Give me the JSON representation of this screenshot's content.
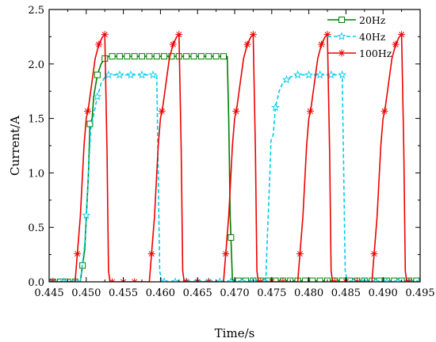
{
  "chart_data": {
    "type": "line",
    "xlabel": "Time/s",
    "ylabel": "Current/A",
    "xlim": [
      0.445,
      0.495
    ],
    "ylim": [
      0.0,
      2.5
    ],
    "xticks": [
      "0.445",
      "0.450",
      "0.455",
      "0.460",
      "0.465",
      "0.470",
      "0.475",
      "0.480",
      "0.485",
      "0.490",
      "0.495"
    ],
    "yticks": [
      "0.0",
      "0.5",
      "1.0",
      "1.5",
      "2.0",
      "2.5"
    ],
    "grid": false,
    "legend_position": "top-right",
    "series": [
      {
        "name": "20Hz",
        "color": "#008000",
        "line_style": "solid",
        "marker": "square",
        "points": [
          [
            0.445,
            0.0
          ],
          [
            0.4492,
            0.0
          ],
          [
            0.4498,
            0.3
          ],
          [
            0.4503,
            1.0
          ],
          [
            0.4505,
            1.45
          ],
          [
            0.4508,
            1.5
          ],
          [
            0.451,
            1.7
          ],
          [
            0.4515,
            1.9
          ],
          [
            0.452,
            2.0
          ],
          [
            0.4525,
            2.05
          ],
          [
            0.453,
            2.07
          ],
          [
            0.469,
            2.07
          ],
          [
            0.4692,
            1.5
          ],
          [
            0.4694,
            0.6
          ],
          [
            0.4697,
            0.02
          ],
          [
            0.47,
            0.01
          ],
          [
            0.495,
            0.01
          ]
        ],
        "marker_x": [
          0.4455,
          0.4465,
          0.4475,
          0.4485,
          0.4495,
          0.4505,
          0.4515,
          0.4525,
          0.4535,
          0.4545,
          0.4555,
          0.4565,
          0.4575,
          0.4585,
          0.4595,
          0.4605,
          0.4615,
          0.4625,
          0.4635,
          0.4645,
          0.4655,
          0.4665,
          0.4675,
          0.4685,
          0.4695,
          0.4705,
          0.4715,
          0.4725,
          0.4735,
          0.4745,
          0.4755,
          0.4765,
          0.4775,
          0.4785,
          0.4795,
          0.4805,
          0.4815,
          0.4825,
          0.4835,
          0.4845,
          0.4855,
          0.4865,
          0.4875,
          0.4885,
          0.4895,
          0.4905,
          0.4915,
          0.4925,
          0.4935,
          0.4945
        ]
      },
      {
        "name": "40Hz",
        "color": "#00CCEE",
        "line_style": "dashed",
        "marker": "star",
        "points": [
          [
            0.445,
            0.0
          ],
          [
            0.4492,
            0.0
          ],
          [
            0.4498,
            0.35
          ],
          [
            0.4503,
            1.0
          ],
          [
            0.4506,
            1.4
          ],
          [
            0.4515,
            1.7
          ],
          [
            0.452,
            1.82
          ],
          [
            0.4525,
            1.88
          ],
          [
            0.453,
            1.9
          ],
          [
            0.4595,
            1.9
          ],
          [
            0.4597,
            1.0
          ],
          [
            0.4599,
            0.1
          ],
          [
            0.4602,
            0.0
          ],
          [
            0.4742,
            0.0
          ],
          [
            0.4744,
            0.4
          ],
          [
            0.4747,
            0.9
          ],
          [
            0.4749,
            1.3
          ],
          [
            0.4752,
            1.35
          ],
          [
            0.4755,
            1.6
          ],
          [
            0.476,
            1.75
          ],
          [
            0.4765,
            1.83
          ],
          [
            0.4775,
            1.88
          ],
          [
            0.4785,
            1.9
          ],
          [
            0.4845,
            1.9
          ],
          [
            0.4847,
            1.0
          ],
          [
            0.4849,
            0.1
          ],
          [
            0.4852,
            0.0
          ],
          [
            0.495,
            0.0
          ]
        ],
        "marker_x": [
          0.4455,
          0.447,
          0.4485,
          0.45,
          0.4515,
          0.453,
          0.4545,
          0.456,
          0.4575,
          0.459,
          0.4605,
          0.462,
          0.4635,
          0.465,
          0.4665,
          0.468,
          0.4695,
          0.471,
          0.4725,
          0.474,
          0.4755,
          0.477,
          0.4785,
          0.48,
          0.4815,
          0.483,
          0.4845,
          0.486,
          0.4875,
          0.489,
          0.4905,
          0.492,
          0.4935,
          0.495
        ]
      },
      {
        "name": "100Hz",
        "color": "#EE0000",
        "line_style": "solid",
        "marker": "asterisk",
        "points": [
          [
            0.445,
            0.0
          ],
          [
            0.4485,
            0.0
          ],
          [
            0.4492,
            0.6
          ],
          [
            0.4497,
            1.25
          ],
          [
            0.45,
            1.5
          ],
          [
            0.4503,
            1.6
          ],
          [
            0.4507,
            1.8
          ],
          [
            0.4512,
            2.05
          ],
          [
            0.4517,
            2.18
          ],
          [
            0.4522,
            2.25
          ],
          [
            0.4525,
            2.27
          ],
          [
            0.4528,
            1.2
          ],
          [
            0.453,
            0.1
          ],
          [
            0.4532,
            0.0
          ],
          [
            0.4585,
            0.0
          ],
          [
            0.4592,
            0.6
          ],
          [
            0.4597,
            1.25
          ],
          [
            0.46,
            1.5
          ],
          [
            0.4603,
            1.6
          ],
          [
            0.4607,
            1.8
          ],
          [
            0.4612,
            2.05
          ],
          [
            0.4617,
            2.18
          ],
          [
            0.4622,
            2.25
          ],
          [
            0.4625,
            2.27
          ],
          [
            0.4628,
            1.2
          ],
          [
            0.463,
            0.1
          ],
          [
            0.4632,
            0.0
          ],
          [
            0.4685,
            0.0
          ],
          [
            0.4692,
            0.6
          ],
          [
            0.4697,
            1.25
          ],
          [
            0.47,
            1.5
          ],
          [
            0.4703,
            1.6
          ],
          [
            0.4707,
            1.8
          ],
          [
            0.4712,
            2.05
          ],
          [
            0.4717,
            2.18
          ],
          [
            0.4722,
            2.25
          ],
          [
            0.4725,
            2.27
          ],
          [
            0.4728,
            1.2
          ],
          [
            0.473,
            0.1
          ],
          [
            0.4732,
            0.0
          ],
          [
            0.4785,
            0.0
          ],
          [
            0.4792,
            0.6
          ],
          [
            0.4797,
            1.25
          ],
          [
            0.48,
            1.5
          ],
          [
            0.4803,
            1.6
          ],
          [
            0.4807,
            1.8
          ],
          [
            0.4812,
            2.05
          ],
          [
            0.4817,
            2.18
          ],
          [
            0.4822,
            2.25
          ],
          [
            0.4825,
            2.27
          ],
          [
            0.4828,
            1.2
          ],
          [
            0.483,
            0.1
          ],
          [
            0.4832,
            0.0
          ],
          [
            0.4885,
            0.0
          ],
          [
            0.4892,
            0.6
          ],
          [
            0.4897,
            1.25
          ],
          [
            0.49,
            1.5
          ],
          [
            0.4903,
            1.6
          ],
          [
            0.4907,
            1.8
          ],
          [
            0.4912,
            2.05
          ],
          [
            0.4917,
            2.18
          ],
          [
            0.4922,
            2.25
          ],
          [
            0.4925,
            2.27
          ],
          [
            0.4928,
            1.2
          ],
          [
            0.493,
            0.1
          ],
          [
            0.4932,
            0.0
          ],
          [
            0.495,
            0.0
          ]
        ],
        "marker_x": [
          0.4455,
          0.4488,
          0.4502,
          0.4517,
          0.4525,
          0.4535,
          0.455,
          0.4565,
          0.4588,
          0.4602,
          0.4617,
          0.4625,
          0.4635,
          0.465,
          0.4665,
          0.4688,
          0.4702,
          0.4717,
          0.4725,
          0.4735,
          0.475,
          0.4765,
          0.4788,
          0.4802,
          0.4817,
          0.4825,
          0.4835,
          0.485,
          0.4865,
          0.4888,
          0.4902,
          0.4917,
          0.4925,
          0.4935
        ]
      }
    ]
  }
}
